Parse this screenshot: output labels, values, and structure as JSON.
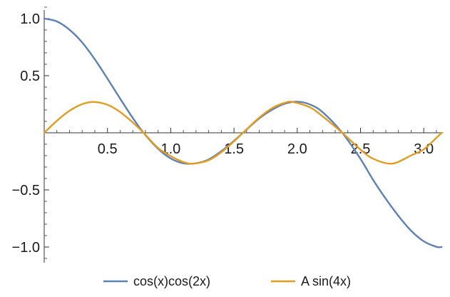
{
  "chart_data": {
    "type": "line",
    "title": "",
    "xlabel": "",
    "ylabel": "",
    "xlim": [
      0,
      3.1416
    ],
    "ylim": [
      -1.0,
      1.0
    ],
    "x_ticks_major": [
      0.5,
      1.0,
      1.5,
      2.0,
      2.5,
      3.0
    ],
    "x_tick_labels": [
      "0.5",
      "1.0",
      "1.5",
      "2.0",
      "2.5",
      "3.0"
    ],
    "y_ticks_major": [
      -1.0,
      -0.5,
      0.5,
      1.0
    ],
    "y_tick_labels": [
      "−1.0",
      "−0.5",
      "0.5",
      "1.0"
    ],
    "grid": false,
    "legend_position": "bottom",
    "series": [
      {
        "name": "cos(x)cos(2x)",
        "color": "#5e81b5",
        "x": [
          0,
          0.1,
          0.2,
          0.3,
          0.4,
          0.5,
          0.6,
          0.7,
          0.785,
          0.9,
          1.0,
          1.1,
          1.2,
          1.3,
          1.4,
          1.5,
          1.571,
          1.7,
          1.8,
          1.9,
          2.0,
          2.1,
          2.2,
          2.356,
          2.5,
          2.6,
          2.7,
          2.8,
          2.9,
          3.0,
          3.1,
          3.1416
        ],
        "y": [
          1.0,
          0.975,
          0.902,
          0.791,
          0.643,
          0.474,
          0.299,
          0.13,
          0.0,
          -0.14,
          -0.225,
          -0.267,
          -0.267,
          -0.233,
          -0.161,
          -0.07,
          0.0,
          0.126,
          0.201,
          0.254,
          0.272,
          0.248,
          0.181,
          0.0,
          -0.229,
          -0.413,
          -0.578,
          -0.728,
          -0.857,
          -0.95,
          -0.998,
          -1.0
        ]
      },
      {
        "name": "A sin(4x)",
        "color": "#e19c24",
        "x": [
          0,
          0.1,
          0.2,
          0.3,
          0.393,
          0.5,
          0.6,
          0.7,
          0.785,
          0.9,
          1.0,
          1.1,
          1.178,
          1.3,
          1.4,
          1.5,
          1.571,
          1.7,
          1.8,
          1.9,
          1.963,
          2.1,
          2.2,
          2.356,
          2.5,
          2.6,
          2.749,
          2.9,
          3.0,
          3.1,
          3.1416
        ],
        "y": [
          0.0,
          0.105,
          0.193,
          0.251,
          0.27,
          0.245,
          0.182,
          0.09,
          0.0,
          -0.133,
          -0.204,
          -0.256,
          -0.27,
          -0.24,
          -0.17,
          -0.075,
          0.0,
          0.133,
          0.215,
          0.262,
          0.27,
          0.223,
          0.144,
          0.0,
          -0.147,
          -0.227,
          -0.27,
          -0.198,
          -0.145,
          -0.044,
          0.0
        ]
      }
    ]
  }
}
